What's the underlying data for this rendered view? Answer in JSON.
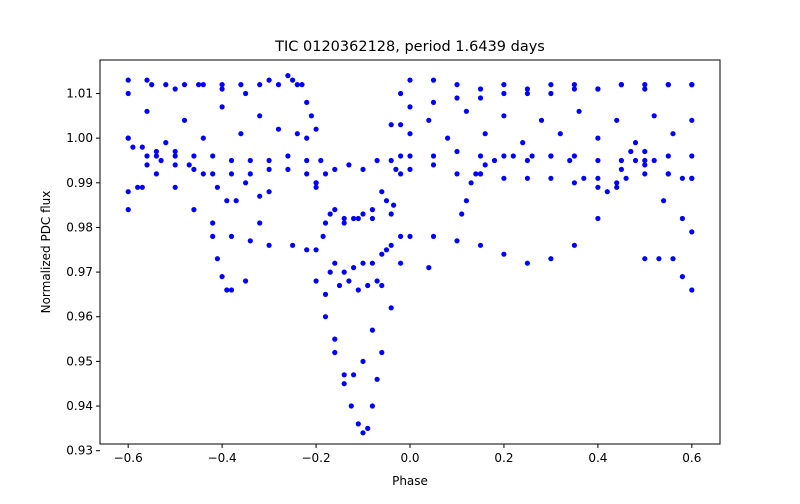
{
  "chart_data": {
    "type": "scatter",
    "title": "TIC 0120362128, period 1.6439 days",
    "xlabel": "Phase",
    "ylabel": "Normalized PDC flux",
    "xlim": [
      -0.66,
      0.66
    ],
    "ylim": [
      0.9315,
      1.0175
    ],
    "x_ticks": [
      -0.6,
      -0.4,
      -0.2,
      0.0,
      0.2,
      0.4,
      0.6
    ],
    "x_tick_labels": [
      "−0.6",
      "−0.4",
      "−0.2",
      "0.0",
      "0.2",
      "0.4",
      "0.6"
    ],
    "y_ticks": [
      0.93,
      0.94,
      0.95,
      0.96,
      0.97,
      0.98,
      0.99,
      1.0,
      1.01
    ],
    "y_tick_labels": [
      "0.93",
      "0.94",
      "0.95",
      "0.96",
      "0.97",
      "0.98",
      "0.99",
      "1.00",
      "1.01"
    ],
    "grid": false,
    "marker_color": "#0000ff",
    "series": [
      {
        "points": [
          [
            -0.6,
            1.0
          ],
          [
            -0.56,
            1.006
          ],
          [
            -0.52,
            0.999
          ],
          [
            -0.48,
            1.004
          ],
          [
            -0.44,
            1.0
          ],
          [
            -0.4,
            1.007
          ],
          [
            -0.36,
            1.001
          ],
          [
            -0.32,
            1.005
          ],
          [
            -0.28,
            1.002
          ],
          [
            -0.24,
            1.001
          ],
          [
            -0.22,
            1.0
          ],
          [
            -0.2,
            0.99
          ],
          [
            -0.185,
            0.978
          ],
          [
            -0.17,
            0.97
          ],
          [
            -0.15,
            0.967
          ],
          [
            -0.13,
            0.968
          ],
          [
            -0.11,
            0.966
          ],
          [
            -0.09,
            0.967
          ],
          [
            -0.07,
            0.968
          ],
          [
            -0.05,
            0.975
          ],
          [
            -0.035,
            0.985
          ],
          [
            -0.02,
            0.996
          ],
          [
            0.0,
            1.001
          ],
          [
            0.04,
            1.004
          ],
          [
            0.08,
            1.0
          ],
          [
            0.12,
            1.006
          ],
          [
            0.16,
            1.001
          ],
          [
            0.2,
            1.005
          ],
          [
            0.24,
            0.999
          ],
          [
            0.28,
            1.004
          ],
          [
            0.32,
            1.001
          ],
          [
            0.36,
            1.006
          ],
          [
            0.4,
            1.0
          ],
          [
            0.44,
            1.004
          ],
          [
            0.48,
            0.999
          ],
          [
            0.52,
            1.005
          ],
          [
            0.56,
            1.001
          ],
          [
            0.6,
            1.004
          ]
        ]
      },
      {
        "points": [
          [
            -0.6,
            1.01
          ],
          [
            -0.55,
            1.012
          ],
          [
            -0.5,
            1.011
          ],
          [
            -0.45,
            1.012
          ],
          [
            -0.4,
            1.011
          ],
          [
            -0.35,
            1.01
          ],
          [
            -0.3,
            1.013
          ],
          [
            -0.26,
            1.014
          ],
          [
            -0.23,
            1.012
          ],
          [
            -0.21,
            1.005
          ],
          [
            -0.19,
            0.995
          ],
          [
            -0.16,
            0.993
          ],
          [
            -0.13,
            0.994
          ],
          [
            -0.1,
            0.993
          ],
          [
            -0.07,
            0.995
          ],
          [
            -0.04,
            1.003
          ],
          [
            -0.02,
            1.01
          ],
          [
            0.0,
            1.013
          ],
          [
            0.05,
            1.013
          ],
          [
            0.1,
            1.012
          ],
          [
            0.15,
            1.011
          ],
          [
            0.2,
            1.012
          ],
          [
            0.25,
            1.011
          ],
          [
            0.3,
            1.012
          ],
          [
            0.35,
            1.012
          ],
          [
            0.4,
            1.011
          ],
          [
            0.45,
            1.012
          ],
          [
            0.5,
            1.011
          ],
          [
            0.55,
            1.012
          ],
          [
            0.6,
            1.012
          ]
        ]
      },
      {
        "points": [
          [
            -0.6,
            0.988
          ],
          [
            -0.57,
            0.989
          ],
          [
            -0.54,
            0.992
          ],
          [
            -0.5,
            0.996
          ],
          [
            -0.46,
            0.993
          ],
          [
            -0.42,
            0.992
          ],
          [
            -0.38,
            0.992
          ],
          [
            -0.34,
            0.992
          ],
          [
            -0.3,
            0.993
          ],
          [
            -0.26,
            0.993
          ],
          [
            -0.22,
            0.992
          ],
          [
            -0.2,
            0.989
          ],
          [
            -0.17,
            0.983
          ],
          [
            -0.14,
            0.981
          ],
          [
            -0.11,
            0.982
          ],
          [
            -0.08,
            0.982
          ],
          [
            -0.05,
            0.986
          ],
          [
            -0.03,
            0.993
          ],
          [
            0.0,
            0.993
          ],
          [
            0.05,
            0.994
          ],
          [
            0.1,
            0.992
          ],
          [
            0.15,
            0.992
          ],
          [
            0.2,
            0.991
          ],
          [
            0.25,
            0.991
          ],
          [
            0.3,
            0.991
          ],
          [
            0.35,
            0.99
          ],
          [
            0.4,
            0.991
          ],
          [
            0.45,
            0.993
          ],
          [
            0.5,
            0.992
          ],
          [
            0.55,
            0.992
          ],
          [
            0.6,
            0.991
          ]
        ]
      },
      {
        "points": [
          [
            -0.6,
            0.984
          ],
          [
            -0.58,
            0.989
          ],
          [
            -0.56,
            0.994
          ],
          [
            -0.54,
            0.997
          ],
          [
            -0.5,
            0.989
          ],
          [
            -0.46,
            0.984
          ],
          [
            -0.42,
            0.981
          ],
          [
            -0.38,
            0.978
          ],
          [
            -0.34,
            0.977
          ],
          [
            -0.3,
            0.976
          ],
          [
            -0.25,
            0.976
          ],
          [
            -0.22,
            0.975
          ],
          [
            -0.2,
            0.968
          ],
          [
            -0.18,
            0.96
          ],
          [
            -0.16,
            0.952
          ],
          [
            -0.14,
            0.947
          ],
          [
            -0.12,
            0.947
          ],
          [
            -0.1,
            0.95
          ],
          [
            -0.08,
            0.957
          ],
          [
            -0.06,
            0.967
          ],
          [
            -0.04,
            0.976
          ],
          [
            -0.02,
            0.978
          ],
          [
            0.0,
            0.978
          ],
          [
            0.05,
            0.978
          ],
          [
            0.1,
            0.977
          ],
          [
            0.15,
            0.976
          ],
          [
            0.2,
            0.974
          ],
          [
            0.25,
            0.972
          ],
          [
            0.3,
            0.973
          ],
          [
            0.35,
            0.976
          ],
          [
            0.4,
            0.982
          ],
          [
            0.44,
            0.99
          ],
          [
            0.47,
            0.997
          ],
          [
            0.5,
            0.994
          ],
          [
            0.54,
            0.986
          ],
          [
            0.58,
            0.982
          ],
          [
            0.6,
            0.979
          ]
        ]
      },
      {
        "points": [
          [
            -0.2,
            0.975
          ],
          [
            -0.18,
            0.965
          ],
          [
            -0.16,
            0.955
          ],
          [
            -0.14,
            0.945
          ],
          [
            -0.125,
            0.94
          ],
          [
            -0.11,
            0.936
          ],
          [
            -0.1,
            0.934
          ],
          [
            -0.09,
            0.935
          ],
          [
            -0.08,
            0.94
          ],
          [
            -0.07,
            0.946
          ],
          [
            -0.06,
            0.952
          ],
          [
            -0.04,
            0.962
          ],
          [
            -0.02,
            0.972
          ]
        ]
      },
      {
        "points": [
          [
            -0.6,
            1.013
          ],
          [
            -0.56,
            1.013
          ],
          [
            -0.52,
            1.012
          ],
          [
            -0.48,
            1.012
          ],
          [
            -0.44,
            1.012
          ],
          [
            -0.4,
            1.012
          ],
          [
            -0.36,
            1.012
          ],
          [
            -0.32,
            1.012
          ],
          [
            -0.28,
            1.012
          ],
          [
            -0.25,
            1.013
          ],
          [
            -0.24,
            1.012
          ],
          [
            -0.22,
            1.008
          ],
          [
            -0.2,
            1.002
          ],
          [
            -0.18,
            0.992
          ],
          [
            -0.16,
            0.984
          ],
          [
            -0.14,
            0.982
          ],
          [
            -0.12,
            0.982
          ],
          [
            -0.1,
            0.983
          ],
          [
            -0.08,
            0.984
          ],
          [
            -0.06,
            0.988
          ],
          [
            -0.04,
            0.995
          ],
          [
            -0.02,
            1.003
          ],
          [
            0.0,
            1.007
          ],
          [
            0.05,
            1.008
          ],
          [
            0.1,
            1.009
          ],
          [
            0.15,
            1.009
          ],
          [
            0.2,
            1.01
          ],
          [
            0.25,
            1.01
          ],
          [
            0.3,
            1.01
          ],
          [
            0.35,
            1.011
          ],
          [
            0.4,
            1.011
          ],
          [
            0.45,
            1.012
          ],
          [
            0.5,
            1.012
          ],
          [
            0.55,
            1.012
          ],
          [
            0.6,
            1.012
          ]
        ]
      },
      {
        "points": [
          [
            -0.59,
            0.998
          ],
          [
            -0.56,
            0.996
          ],
          [
            -0.53,
            0.995
          ],
          [
            -0.5,
            0.994
          ],
          [
            -0.46,
            0.996
          ],
          [
            -0.42,
            0.996
          ],
          [
            -0.38,
            0.995
          ],
          [
            -0.34,
            0.995
          ],
          [
            -0.3,
            0.995
          ],
          [
            -0.26,
            0.996
          ],
          [
            -0.22,
            0.995
          ],
          [
            -0.2,
            0.99
          ],
          [
            -0.18,
            0.981
          ],
          [
            -0.16,
            0.972
          ],
          [
            -0.14,
            0.97
          ],
          [
            -0.12,
            0.971
          ],
          [
            -0.1,
            0.972
          ],
          [
            -0.08,
            0.972
          ],
          [
            -0.06,
            0.974
          ],
          [
            -0.04,
            0.983
          ],
          [
            -0.02,
            0.992
          ],
          [
            0.0,
            0.996
          ],
          [
            0.05,
            0.996
          ],
          [
            0.1,
            0.997
          ],
          [
            0.15,
            0.996
          ],
          [
            0.2,
            0.996
          ],
          [
            0.25,
            0.995
          ],
          [
            0.3,
            0.996
          ],
          [
            0.35,
            0.996
          ],
          [
            0.4,
            0.995
          ],
          [
            0.45,
            0.995
          ],
          [
            0.5,
            0.995
          ],
          [
            0.55,
            0.996
          ],
          [
            0.6,
            0.996
          ]
        ]
      },
      {
        "points": [
          [
            0.11,
            0.983
          ],
          [
            0.12,
            0.986
          ],
          [
            0.13,
            0.99
          ],
          [
            0.14,
            0.992
          ],
          [
            0.15,
            0.992
          ],
          [
            0.16,
            0.994
          ],
          [
            0.18,
            0.995
          ],
          [
            0.22,
            0.996
          ],
          [
            0.26,
            0.996
          ],
          [
            0.3,
            0.996
          ],
          [
            0.34,
            0.995
          ],
          [
            0.37,
            0.991
          ],
          [
            0.4,
            0.989
          ],
          [
            0.42,
            0.988
          ],
          [
            0.44,
            0.989
          ],
          [
            0.46,
            0.991
          ],
          [
            0.48,
            0.995
          ],
          [
            0.5,
            0.997
          ],
          [
            0.52,
            0.995
          ],
          [
            0.55,
            0.992
          ],
          [
            0.58,
            0.991
          ],
          [
            0.6,
            0.991
          ]
        ]
      },
      {
        "points": [
          [
            -0.6,
            1.0
          ],
          [
            -0.57,
            0.998
          ],
          [
            -0.54,
            0.996
          ],
          [
            -0.5,
            0.997
          ],
          [
            -0.47,
            0.994
          ],
          [
            -0.44,
            0.992
          ],
          [
            -0.41,
            0.989
          ],
          [
            -0.39,
            0.986
          ],
          [
            -0.37,
            0.986
          ],
          [
            -0.35,
            0.99
          ],
          [
            -0.32,
            0.987
          ],
          [
            -0.3,
            0.988
          ]
        ]
      },
      {
        "points": [
          [
            -0.42,
            0.978
          ],
          [
            -0.41,
            0.973
          ],
          [
            -0.4,
            0.969
          ],
          [
            -0.39,
            0.966
          ],
          [
            -0.38,
            0.966
          ],
          [
            -0.35,
            0.968
          ],
          [
            -0.32,
            0.981
          ],
          [
            0.04,
            0.971
          ],
          [
            0.5,
            0.973
          ],
          [
            0.53,
            0.973
          ],
          [
            0.56,
            0.973
          ],
          [
            0.58,
            0.969
          ],
          [
            0.6,
            0.966
          ]
        ]
      }
    ]
  }
}
